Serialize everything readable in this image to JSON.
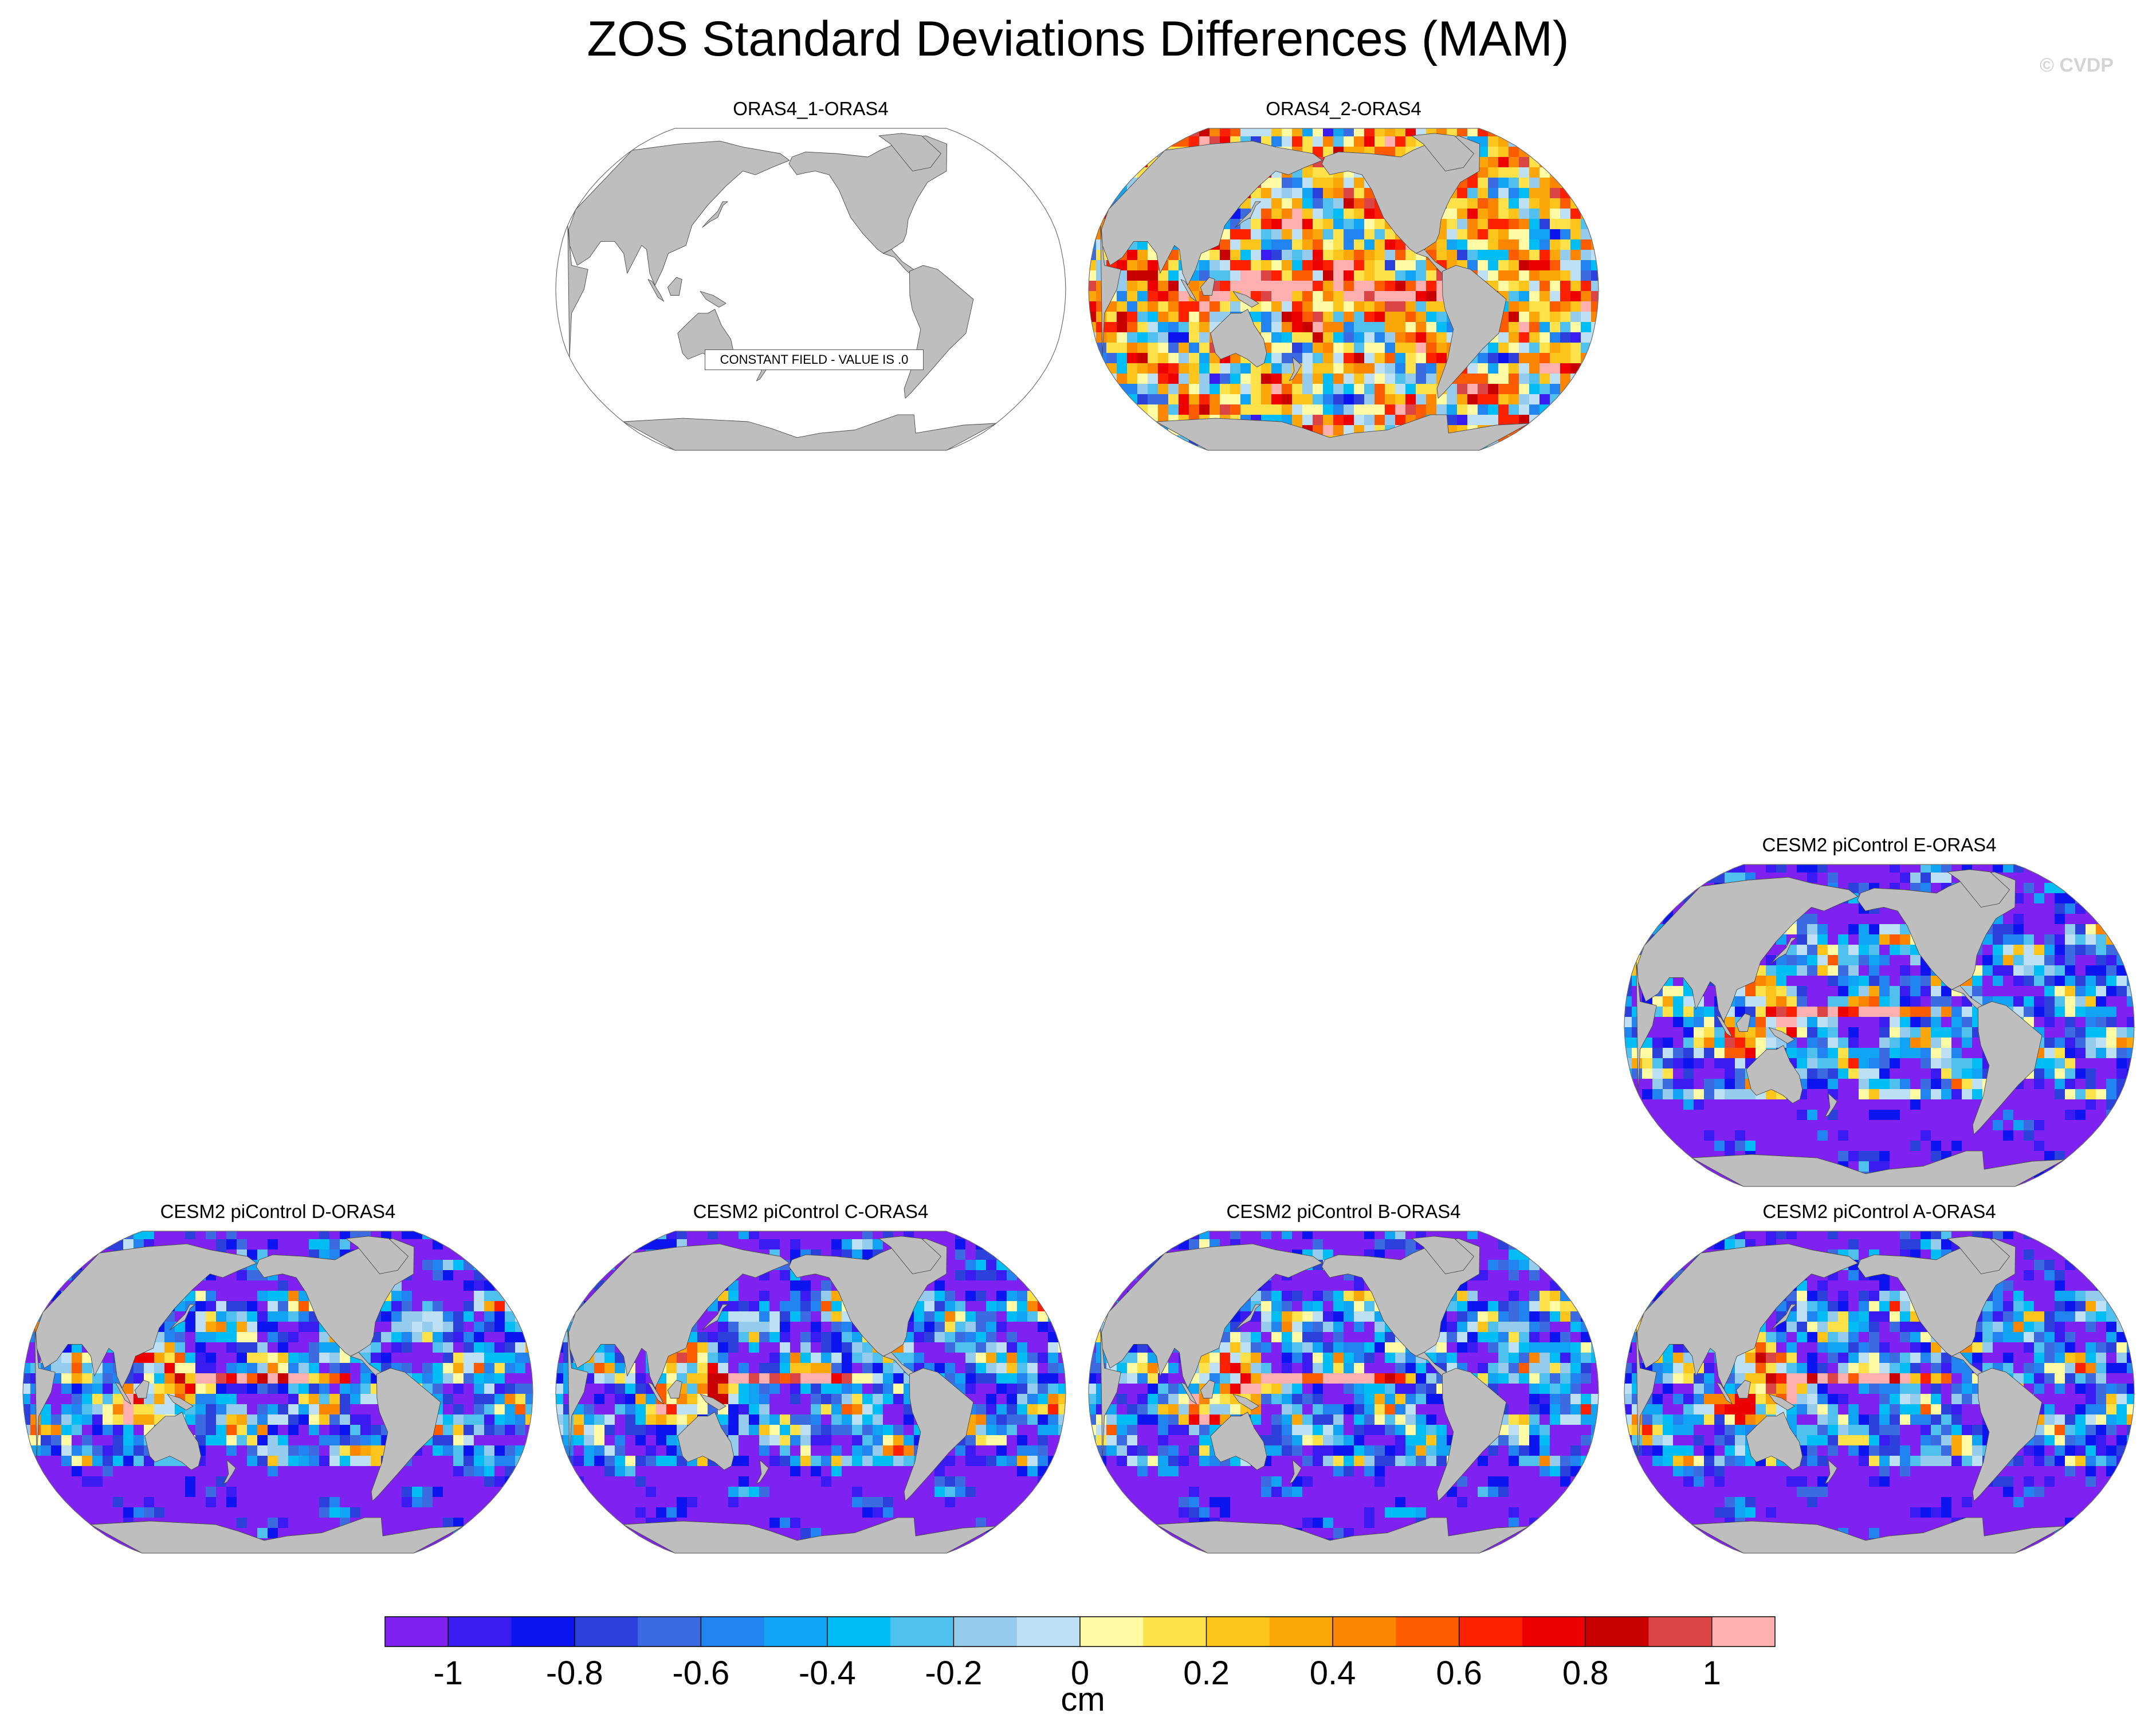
{
  "chart_data": {
    "type": "heatmap",
    "title": "ZOS Standard Deviations Differences (MAM)",
    "copyright": "© CVDP",
    "projection": "Robinson (Pacific-centered)",
    "colorbar": {
      "units": "cm",
      "levels": [
        -1.1,
        -1.0,
        -0.9,
        -0.8,
        -0.7,
        -0.6,
        -0.5,
        -0.4,
        -0.3,
        -0.2,
        -0.1,
        0.0,
        0.1,
        0.2,
        0.3,
        0.4,
        0.5,
        0.6,
        0.7,
        0.8,
        0.9,
        1.0,
        1.1
      ],
      "tick_labels": [
        "-1",
        "-0.8",
        "-0.6",
        "-0.4",
        "-0.2",
        "0",
        "0.2",
        "0.4",
        "0.6",
        "0.8",
        "1"
      ],
      "tick_values": [
        -1,
        -0.8,
        -0.6,
        -0.4,
        -0.2,
        0,
        0.2,
        0.4,
        0.6,
        0.8,
        1
      ],
      "colors": [
        "#7f21f0",
        "#3a1cf2",
        "#0c14f0",
        "#2c40dc",
        "#3c6ae0",
        "#2284f0",
        "#12a4f4",
        "#00bdf6",
        "#50c0ef",
        "#95cbec",
        "#bde0f5",
        "#fffba4",
        "#ffe14a",
        "#fdc41c",
        "#fba709",
        "#fd8600",
        "#fc5b00",
        "#fd2100",
        "#ee0000",
        "#c80000",
        "#db4545",
        "#feb0b0"
      ]
    },
    "panels": [
      {
        "id": "p1",
        "title": "ORAS4_1-ORAS4",
        "note": "CONSTANT FIELD - VALUE IS .0",
        "pattern": "constant",
        "seed": 1
      },
      {
        "id": "p2",
        "title": "ORAS4_2-ORAS4",
        "pattern": "positive",
        "seed": 2
      },
      {
        "id": "p3",
        "title": "CESM2 piControl E-ORAS4",
        "pattern": "negative",
        "seed": 3
      },
      {
        "id": "p4",
        "title": "CESM2 piControl D-ORAS4",
        "pattern": "negative",
        "seed": 4
      },
      {
        "id": "p5",
        "title": "CESM2 piControl C-ORAS4",
        "pattern": "negative",
        "seed": 5
      },
      {
        "id": "p6",
        "title": "CESM2 piControl B-ORAS4",
        "pattern": "negative",
        "seed": 6
      },
      {
        "id": "p7",
        "title": "CESM2 piControl A-ORAS4",
        "pattern": "negative",
        "seed": 7
      }
    ]
  }
}
